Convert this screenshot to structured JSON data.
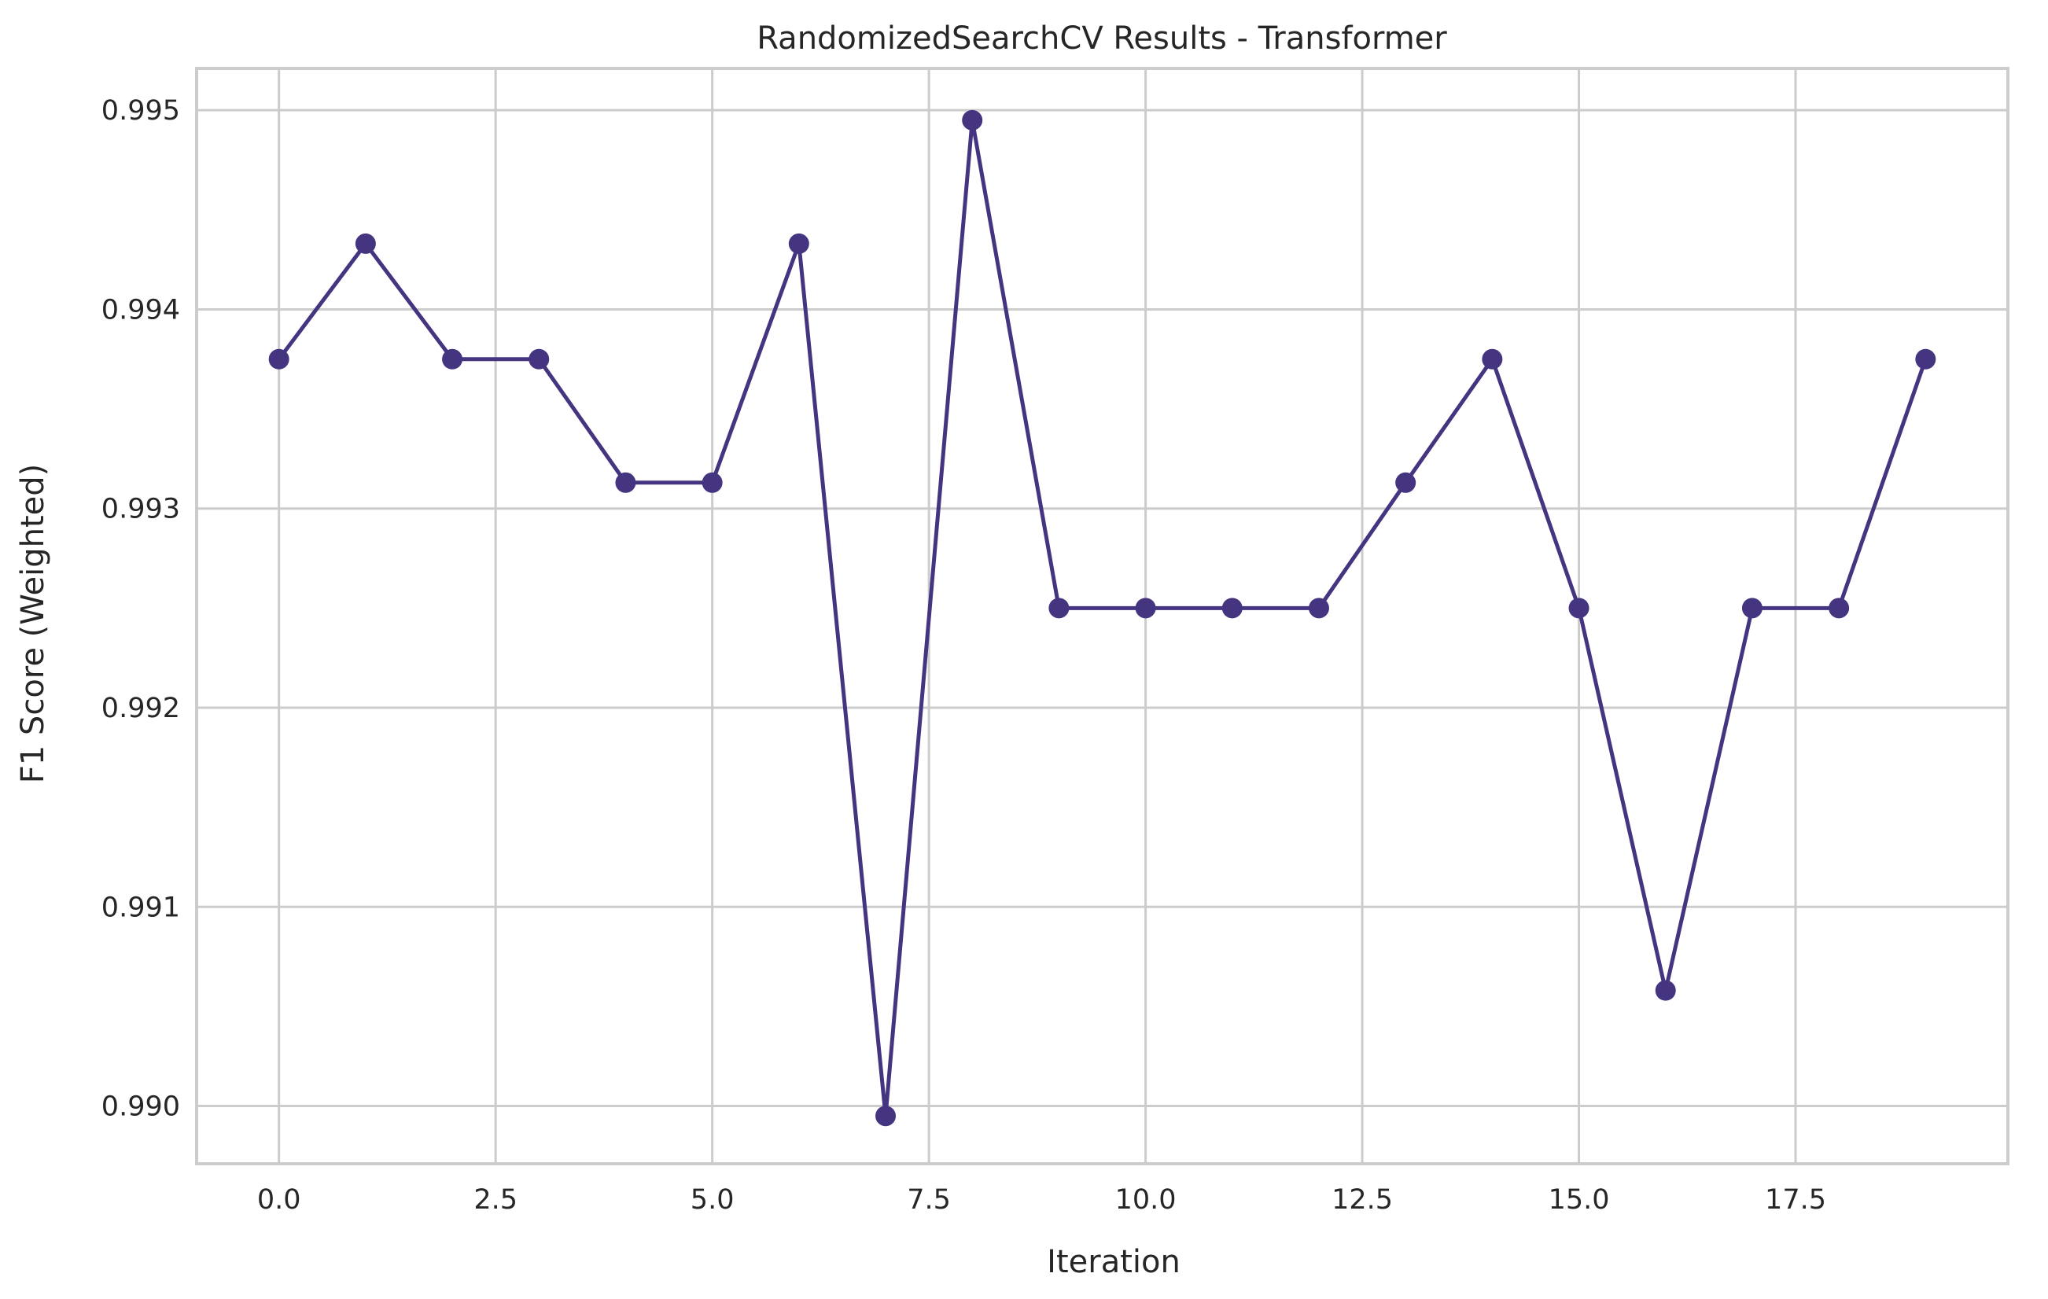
{
  "chart_data": {
    "type": "line",
    "title": "RandomizedSearchCV Results - Transformer",
    "xlabel": "Iteration",
    "ylabel": "F1 Score (Weighted)",
    "xlim": [
      -0.95,
      19.95
    ],
    "ylim": [
      0.98971,
      0.99521
    ],
    "x_ticks": [
      0.0,
      2.5,
      5.0,
      7.5,
      10.0,
      12.5,
      15.0,
      17.5
    ],
    "x_tick_labels": [
      "0.0",
      "2.5",
      "5.0",
      "7.5",
      "10.0",
      "12.5",
      "15.0",
      "17.5"
    ],
    "y_ticks": [
      0.99,
      0.991,
      0.992,
      0.993,
      0.994,
      0.995
    ],
    "y_tick_labels": [
      "0.990",
      "0.991",
      "0.992",
      "0.993",
      "0.994",
      "0.995"
    ],
    "grid": true,
    "series": [
      {
        "color": "#453581",
        "marker": "circle",
        "x": [
          0,
          1,
          2,
          3,
          4,
          5,
          6,
          7,
          8,
          9,
          10,
          11,
          12,
          13,
          14,
          15,
          16,
          17,
          18,
          19
        ],
        "y": [
          0.99375,
          0.99433,
          0.99375,
          0.99375,
          0.99313,
          0.99313,
          0.99433,
          0.98995,
          0.99495,
          0.9925,
          0.9925,
          0.9925,
          0.9925,
          0.99313,
          0.99375,
          0.9925,
          0.99058,
          0.9925,
          0.9925,
          0.99375
        ]
      }
    ]
  }
}
